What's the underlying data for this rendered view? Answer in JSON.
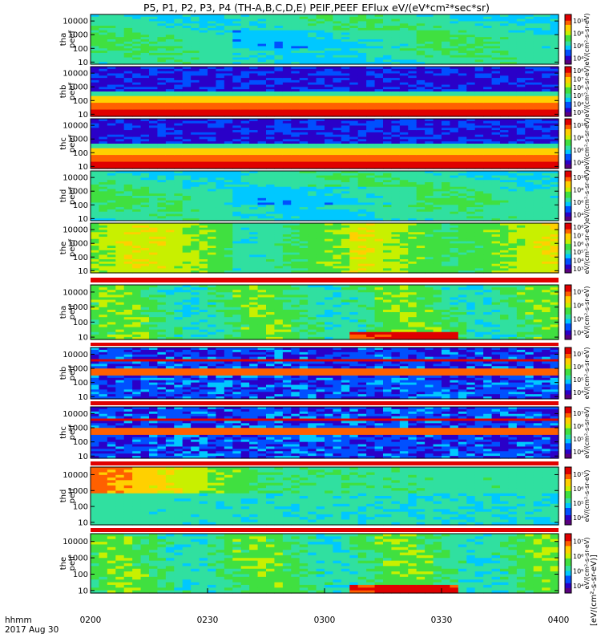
{
  "title": "P5, P1, P2, P3, P4 (TH-A,B,C,D,E) PEIF,PEEF EFlux eV/(eV*cm²*sec*sr)",
  "time_axis": {
    "label_line1": "hhmm",
    "label_line2": "2017 Aug 30",
    "ticks": [
      "0200",
      "0230",
      "0300",
      "0330",
      "0400"
    ]
  },
  "colorbar_label_outer": "[eV/(cm²-s-sr-eV)]",
  "colorbar_label_inner": "eV/(cm²-s-sr-eV)",
  "colors": {
    "spectrum": [
      "#5a0080",
      "#2a00c8",
      "#0050ff",
      "#00c8ff",
      "#30e0a0",
      "#40e040",
      "#c8f000",
      "#ffd000",
      "#ff6000",
      "#e00000"
    ]
  },
  "chart_data": [
    {
      "type": "heatmap",
      "panel": "tha peef",
      "ylabel": [
        "tha",
        "peef"
      ],
      "yscale": "log",
      "ylim": [
        7,
        30000
      ],
      "yticks": [
        "10",
        "100",
        "1000",
        "10000"
      ],
      "zscale": "log",
      "cbar_ticks": [
        "10⁴",
        "10⁶",
        "10⁸",
        "10¹⁰"
      ],
      "pattern": "peef_low"
    },
    {
      "type": "heatmap",
      "panel": "thb peef",
      "ylabel": [
        "thb",
        "peef"
      ],
      "yscale": "log",
      "ylim": [
        7,
        30000
      ],
      "yticks": [
        "10",
        "100",
        "1000",
        "10000"
      ],
      "zscale": "log",
      "cbar_ticks": [
        "10³",
        "10⁴",
        "10⁵",
        "10⁶",
        "10⁷",
        "10⁸"
      ],
      "pattern": "peef_band"
    },
    {
      "type": "heatmap",
      "panel": "thc peef",
      "ylabel": [
        "thc",
        "peef"
      ],
      "yscale": "log",
      "ylim": [
        7,
        30000
      ],
      "yticks": [
        "10",
        "100",
        "1000",
        "10000"
      ],
      "zscale": "log",
      "cbar_ticks": [
        "10⁴",
        "10⁶",
        "10⁸",
        "10¹⁰"
      ],
      "pattern": "peef_band"
    },
    {
      "type": "heatmap",
      "panel": "thd peef",
      "ylabel": [
        "thd",
        "peef"
      ],
      "yscale": "log",
      "ylim": [
        7,
        30000
      ],
      "yticks": [
        "10",
        "100",
        "1000",
        "10000"
      ],
      "zscale": "log",
      "cbar_ticks": [
        "10⁴",
        "10⁶",
        "10⁸",
        "10¹⁰"
      ],
      "pattern": "peef_low"
    },
    {
      "type": "heatmap",
      "panel": "the peef",
      "ylabel": [
        "the",
        "peef"
      ],
      "yscale": "log",
      "ylim": [
        7,
        30000
      ],
      "yticks": [
        "10",
        "100",
        "1000",
        "10000"
      ],
      "zscale": "log",
      "cbar_ticks": [
        "10³",
        "10⁴",
        "10⁵",
        "10⁶",
        "10⁷",
        "10⁸"
      ],
      "pattern": "peef_high"
    },
    {
      "type": "heatmap",
      "panel": "tha peif",
      "ylabel": [
        "tha",
        "peif"
      ],
      "yscale": "log",
      "ylim": [
        7,
        30000
      ],
      "yticks": [
        "10",
        "100",
        "1000",
        "10000"
      ],
      "zscale": "log",
      "cbar_ticks": [
        "10⁴",
        "10⁵",
        "10⁶",
        "10⁷"
      ],
      "pattern": "peif_mid"
    },
    {
      "type": "heatmap",
      "panel": "thb peif",
      "ylabel": [
        "thb",
        "peif"
      ],
      "yscale": "log",
      "ylim": [
        7,
        30000
      ],
      "yticks": [
        "10",
        "100",
        "1000",
        "10000"
      ],
      "zscale": "log",
      "cbar_ticks": [
        "10⁴",
        "10⁵",
        "10⁶",
        "10⁷"
      ],
      "pattern": "peif_band"
    },
    {
      "type": "heatmap",
      "panel": "thc peif",
      "ylabel": [
        "thc",
        "peif"
      ],
      "yscale": "log",
      "ylim": [
        7,
        30000
      ],
      "yticks": [
        "10",
        "100",
        "1000",
        "10000"
      ],
      "zscale": "log",
      "cbar_ticks": [
        "10⁴",
        "10⁵",
        "10⁶",
        "10⁷"
      ],
      "pattern": "peif_band"
    },
    {
      "type": "heatmap",
      "panel": "thd peif",
      "ylabel": [
        "thd",
        "peif"
      ],
      "yscale": "log",
      "ylim": [
        7,
        30000
      ],
      "yticks": [
        "10",
        "100",
        "1000",
        "10000"
      ],
      "zscale": "log",
      "cbar_ticks": [
        "10⁴",
        "10⁵",
        "10⁶",
        "10⁷"
      ],
      "pattern": "peif_hot"
    },
    {
      "type": "heatmap",
      "panel": "the peif",
      "ylabel": [
        "the",
        "peif"
      ],
      "yscale": "log",
      "ylim": [
        7,
        30000
      ],
      "yticks": [
        "10",
        "100",
        "1000",
        "10000"
      ],
      "zscale": "log",
      "cbar_ticks": [
        "10⁴",
        "10⁵",
        "10⁶",
        "10⁷"
      ],
      "pattern": "peif_mid"
    }
  ]
}
